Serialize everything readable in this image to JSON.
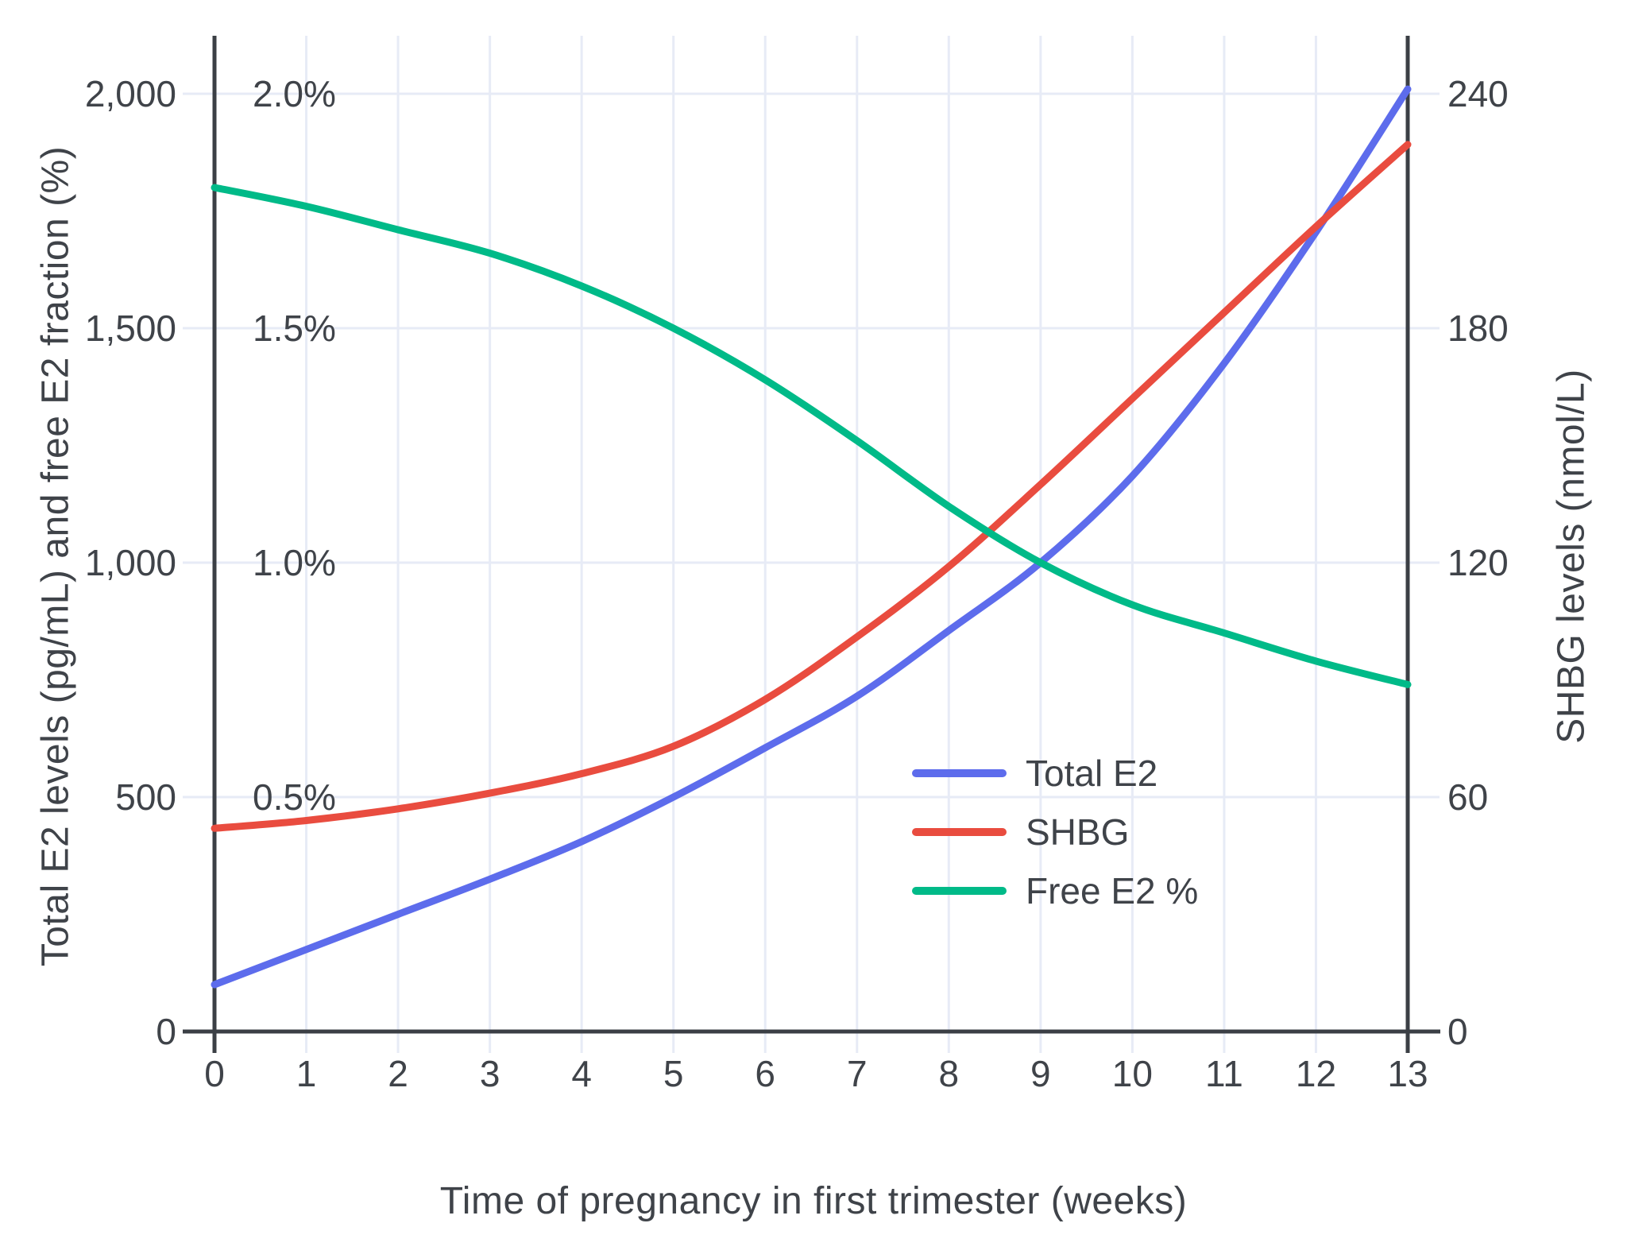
{
  "figure": {
    "background": "#ffffff",
    "grid_color": "#e7ebf6",
    "axis_line_color": "#3b3f45",
    "text_color": "#3f4349"
  },
  "axes": {
    "x": {
      "tick_labels": [
        "0",
        "1",
        "2",
        "3",
        "4",
        "5",
        "6",
        "7",
        "8",
        "9",
        "10",
        "11",
        "12",
        "13"
      ],
      "tick_values": [
        0,
        1,
        2,
        3,
        4,
        5,
        6,
        7,
        8,
        9,
        10,
        11,
        12,
        13
      ]
    },
    "left": {
      "tick_labels": [
        "0",
        "500",
        "1,000",
        "1,500",
        "2,000"
      ],
      "tick_values": [
        0,
        500,
        1000,
        1500,
        2000
      ],
      "pct_labels": [
        "0.5%",
        "1.0%",
        "1.5%",
        "2.0%"
      ],
      "pct_values": [
        500,
        1000,
        1500,
        2000
      ]
    },
    "right": {
      "tick_labels": [
        "0",
        "60",
        "120",
        "180",
        "240"
      ],
      "tick_values": [
        0,
        60,
        120,
        180,
        240
      ]
    }
  },
  "legend": {
    "items": [
      {
        "label": "Total E2",
        "color": "#5d6cec"
      },
      {
        "label": "SHBG",
        "color": "#e94c3f"
      },
      {
        "label": "Free E2 %",
        "color": "#00ba88"
      }
    ]
  },
  "chart_data": {
    "type": "line",
    "title": "",
    "xlabel": "Time of pregnancy in first trimester (weeks)",
    "ylabel_left": "Total E2 levels (pg/mL) and free E2 fraction (%)",
    "ylabel_right": "SHBG levels (nmol/L)",
    "x": [
      0,
      1,
      2,
      3,
      4,
      5,
      6,
      7,
      8,
      9,
      10,
      11,
      12,
      13
    ],
    "xlim": [
      0,
      13
    ],
    "ylim_left": [
      0,
      2120
    ],
    "ylim_right": [
      0,
      254.4
    ],
    "grid": true,
    "legend_position": "inside-right-middle",
    "series": [
      {
        "name": "Total E2",
        "unit": "pg/mL",
        "axis": "left",
        "color": "#5d6cec",
        "values": [
          100,
          175,
          250,
          325,
          405,
          500,
          605,
          715,
          855,
          1000,
          1185,
          1425,
          1705,
          2010
        ]
      },
      {
        "name": "SHBG",
        "unit": "nmol/L",
        "axis": "right",
        "color": "#e94c3f",
        "values": [
          52,
          54,
          57,
          61,
          66,
          73,
          85,
          101,
          119,
          140,
          162,
          184,
          206,
          227
        ]
      },
      {
        "name": "Free E2 %",
        "unit": "%",
        "axis": "left-percent",
        "percent_scale_note": "2.0% aligns with 2,000 pg/mL on the left axis",
        "color": "#00ba88",
        "values": [
          1.8,
          1.76,
          1.71,
          1.66,
          1.59,
          1.5,
          1.39,
          1.26,
          1.12,
          1.0,
          0.91,
          0.85,
          0.79,
          0.74
        ]
      }
    ]
  }
}
